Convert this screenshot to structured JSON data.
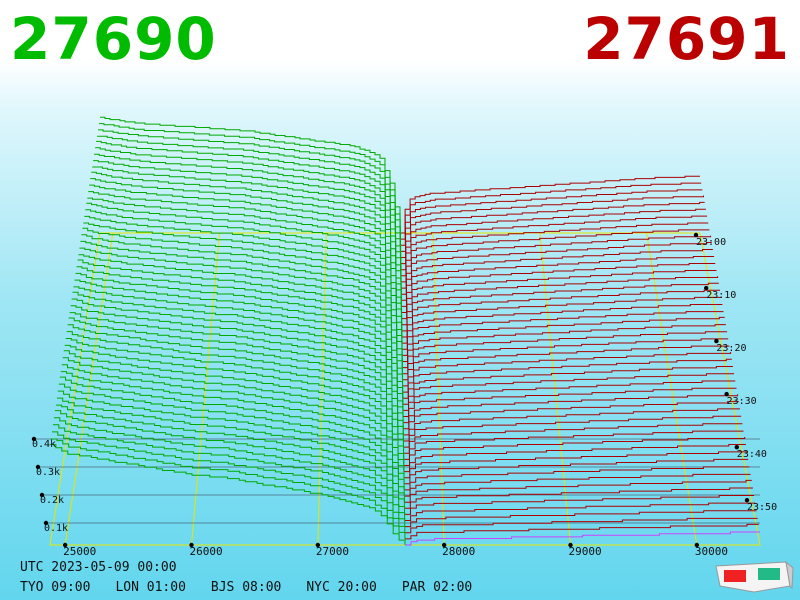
{
  "header": {
    "bid_price": "27690",
    "ask_price": "27691"
  },
  "colors": {
    "bid": "#00bb00",
    "ask": "#bb0000",
    "bid_line": "#00aa00",
    "ask_line": "#aa0000",
    "grid": "#e6e600",
    "last_ask": "#cc44ff"
  },
  "footer": {
    "utc": "UTC 2023-05-09 00:00",
    "timezones": [
      "TYO 09:00",
      "LON 01:00",
      "BJS 08:00",
      "NYC 20:00",
      "PAR 02:00"
    ]
  },
  "chart_data": {
    "type": "3d-depth-line",
    "title": "",
    "x_ticks": [
      25000,
      26000,
      27000,
      28000,
      29000,
      30000
    ],
    "x_range": [
      24880,
      30500
    ],
    "mid_price": 27690.5,
    "depth_ticks": [
      "0.1k",
      "0.2k",
      "0.3k",
      "0.4k"
    ],
    "time_ticks": [
      "23:00",
      "23:10",
      "23:20",
      "23:30",
      "23:40",
      "23:50"
    ],
    "series": [
      {
        "side": "bid",
        "price": [
          24880,
          25000,
          25250,
          25500,
          25750,
          26000,
          26250,
          26500,
          26750,
          27000,
          27250,
          27400,
          27500,
          27600,
          27690
        ],
        "depth_latest": [
          370,
          340,
          320,
          300,
          280,
          260,
          250,
          230,
          210,
          190,
          160,
          140,
          110,
          40,
          0
        ],
        "depth_oldest": [
          610,
          600,
          580,
          570,
          560,
          550,
          540,
          520,
          500,
          480,
          460,
          430,
          400,
          260,
          0
        ]
      },
      {
        "side": "ask",
        "price": [
          27691,
          27750,
          27800,
          28000,
          28250,
          28500,
          28750,
          29000,
          29250,
          29500,
          29750,
          30000,
          30250,
          30500
        ],
        "depth_latest": [
          0,
          15,
          20,
          22,
          24,
          27,
          30,
          32,
          35,
          37,
          40,
          42,
          45,
          47
        ],
        "depth_oldest": [
          0,
          160,
          190,
          210,
          220,
          230,
          240,
          250,
          260,
          270,
          280,
          290,
          295,
          300
        ]
      }
    ]
  }
}
